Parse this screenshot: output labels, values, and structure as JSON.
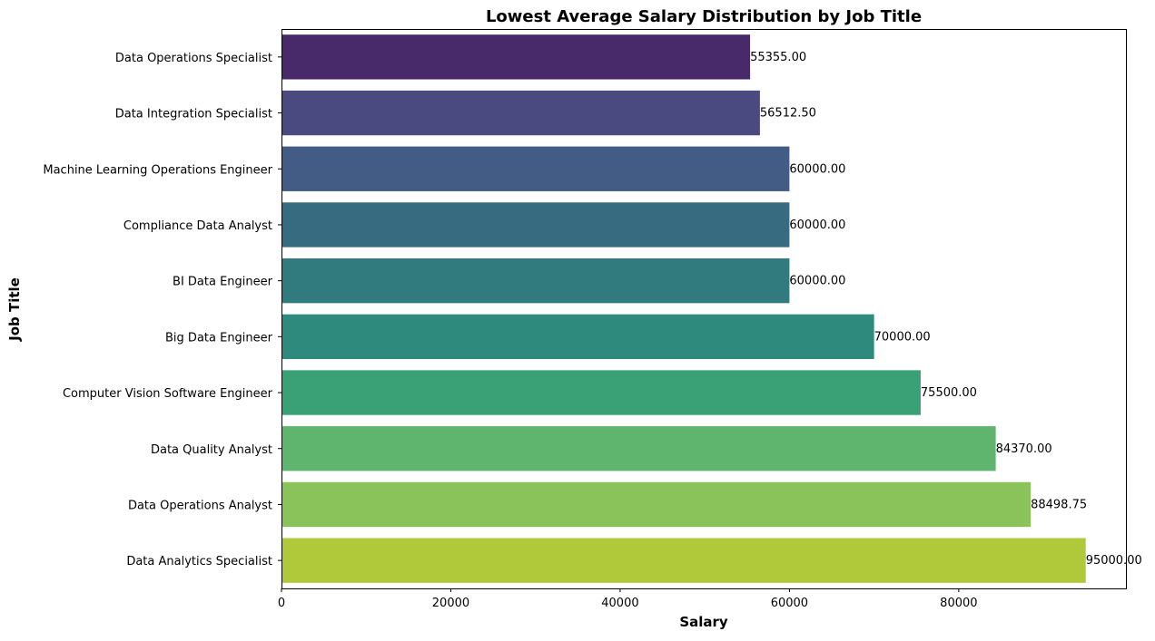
{
  "chart_data": {
    "type": "bar",
    "orientation": "horizontal",
    "title": "Lowest Average Salary Distribution by Job Title",
    "xlabel": "Salary",
    "ylabel": "Job Title",
    "xlim": [
      0,
      99750
    ],
    "x_ticks": [
      0,
      20000,
      40000,
      60000,
      80000
    ],
    "x_tick_labels": [
      "0",
      "20000",
      "40000",
      "60000",
      "80000"
    ],
    "grid": false,
    "legend": "none",
    "categories": [
      "Data Operations Specialist",
      "Data Integration Specialist",
      "Machine Learning Operations Engineer",
      "Compliance Data Analyst",
      "BI Data Engineer",
      "Big Data Engineer",
      "Computer Vision Software Engineer",
      "Data Quality Analyst",
      "Data Operations Analyst",
      "Data Analytics Specialist"
    ],
    "values": [
      55355.0,
      56512.5,
      60000.0,
      60000.0,
      60000.0,
      70000.0,
      75500.0,
      84370.0,
      88498.75,
      95000.0
    ],
    "value_labels": [
      "55355.00",
      "56512.50",
      "60000.00",
      "60000.00",
      "60000.00",
      "70000.00",
      "75500.00",
      "84370.00",
      "88498.75",
      "95000.00"
    ],
    "colors": [
      "#482a6b",
      "#4a4a80",
      "#425c85",
      "#376b80",
      "#317a7e",
      "#2e8a7c",
      "#3aa076",
      "#60b56e",
      "#89c35a",
      "#b0c93b"
    ]
  }
}
